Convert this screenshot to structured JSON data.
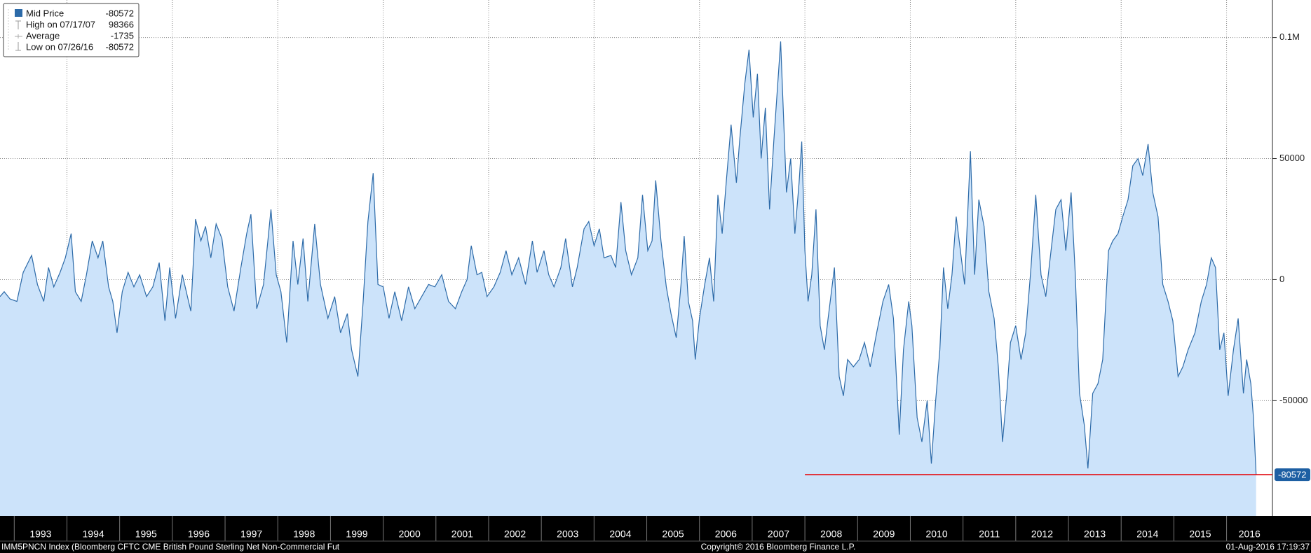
{
  "chart_data": {
    "type": "area",
    "series": [
      {
        "name": "Mid Price",
        "color": "#2c6aa8",
        "fill": "#cce3fa",
        "x": [
          1992.73,
          1992.81,
          1992.92,
          1993.05,
          1993.17,
          1993.33,
          1993.44,
          1993.56,
          1993.65,
          1993.75,
          1993.87,
          1993.97,
          1994.08,
          1994.16,
          1994.27,
          1994.37,
          1994.48,
          1994.59,
          1994.68,
          1994.79,
          1994.87,
          1994.95,
          1995.05,
          1995.16,
          1995.27,
          1995.38,
          1995.51,
          1995.63,
          1995.75,
          1995.86,
          1995.95,
          1996.06,
          1996.19,
          1996.35,
          1996.44,
          1996.54,
          1996.63,
          1996.73,
          1996.83,
          1996.94,
          1997.05,
          1997.17,
          1997.3,
          1997.41,
          1997.49,
          1997.6,
          1997.73,
          1997.87,
          1997.97,
          1998.06,
          1998.17,
          1998.29,
          1998.38,
          1998.48,
          1998.57,
          1998.7,
          1998.81,
          1998.95,
          1999.08,
          1999.19,
          1999.32,
          1999.4,
          1999.52,
          1999.62,
          1999.71,
          1999.81,
          1999.9,
          2000.0,
          2000.11,
          2000.22,
          2000.35,
          2000.48,
          2000.6,
          2000.73,
          2000.86,
          2000.98,
          2001.11,
          2001.24,
          2001.37,
          2001.49,
          2001.59,
          2001.67,
          2001.78,
          2001.87,
          2001.97,
          2002.1,
          2002.22,
          2002.33,
          2002.44,
          2002.57,
          2002.7,
          2002.83,
          2002.92,
          2003.05,
          2003.14,
          2003.24,
          2003.37,
          2003.46,
          2003.59,
          2003.68,
          2003.81,
          2003.9,
          2004.0,
          2004.1,
          2004.19,
          2004.32,
          2004.41,
          2004.51,
          2004.6,
          2004.71,
          2004.83,
          2004.92,
          2005.02,
          2005.1,
          2005.17,
          2005.27,
          2005.37,
          2005.46,
          2005.56,
          2005.65,
          2005.71,
          2005.79,
          2005.87,
          2005.92,
          2006.0,
          2006.1,
          2006.19,
          2006.27,
          2006.35,
          2006.43,
          2006.51,
          2006.6,
          2006.7,
          2006.76,
          2006.86,
          2006.94,
          2007.02,
          2007.1,
          2007.17,
          2007.25,
          2007.33,
          2007.41,
          2007.54,
          2007.57,
          2007.65,
          2007.73,
          2007.81,
          2007.89,
          2007.94,
          2008.0,
          2008.06,
          2008.13,
          2008.21,
          2008.29,
          2008.37,
          2008.44,
          2008.56,
          2008.65,
          2008.73,
          2008.81,
          2008.92,
          2009.03,
          2009.13,
          2009.24,
          2009.37,
          2009.48,
          2009.59,
          2009.68,
          2009.79,
          2009.87,
          2009.97,
          2010.03,
          2010.13,
          2010.22,
          2010.32,
          2010.4,
          2010.48,
          2010.56,
          2010.63,
          2010.71,
          2010.79,
          2010.87,
          2010.95,
          2011.03,
          2011.14,
          2011.22,
          2011.3,
          2011.4,
          2011.49,
          2011.59,
          2011.67,
          2011.75,
          2011.83,
          2011.9,
          2012.0,
          2012.1,
          2012.19,
          2012.29,
          2012.38,
          2012.48,
          2012.57,
          2012.67,
          2012.76,
          2012.86,
          2012.95,
          2013.05,
          2013.13,
          2013.21,
          2013.3,
          2013.37,
          2013.46,
          2013.56,
          2013.65,
          2013.76,
          2013.84,
          2013.94,
          2014.03,
          2014.13,
          2014.22,
          2014.32,
          2014.41,
          2014.51,
          2014.6,
          2014.7,
          2014.79,
          2014.89,
          2014.98,
          2015.08,
          2015.17,
          2015.27,
          2015.4,
          2015.52,
          2015.62,
          2015.71,
          2015.79,
          2015.87,
          2015.95,
          2016.03,
          2016.13,
          2016.22,
          2016.32,
          2016.38,
          2016.46,
          2016.51,
          2016.56
        ],
        "values": [
          -7000,
          -5000,
          -8000,
          -9000,
          3000,
          10000,
          -2000,
          -9000,
          5000,
          -3000,
          3000,
          9000,
          19000,
          -5000,
          -9000,
          2000,
          16000,
          9000,
          16000,
          -3000,
          -9000,
          -22000,
          -5000,
          3000,
          -3000,
          2000,
          -7000,
          -3000,
          7000,
          -17000,
          5000,
          -16000,
          2000,
          -13000,
          25000,
          16000,
          22000,
          9000,
          23000,
          17000,
          -3000,
          -13000,
          5000,
          19000,
          27000,
          -12000,
          -2000,
          29000,
          2000,
          -5000,
          -26000,
          16000,
          -2000,
          17000,
          -9000,
          23000,
          -2000,
          -16000,
          -7000,
          -22000,
          -14000,
          -29000,
          -40000,
          -9000,
          24000,
          44000,
          -2000,
          -3000,
          -16000,
          -5000,
          -17000,
          -3000,
          -12000,
          -7000,
          -2000,
          -3000,
          2000,
          -9000,
          -12000,
          -5000,
          0,
          14000,
          2000,
          3000,
          -7000,
          -3000,
          3000,
          12000,
          2000,
          9000,
          -2000,
          16000,
          3000,
          12000,
          2000,
          -3000,
          5000,
          17000,
          -3000,
          5000,
          21000,
          24000,
          14000,
          21000,
          9000,
          10000,
          5000,
          32000,
          12000,
          2000,
          9000,
          35000,
          12000,
          16000,
          41000,
          16000,
          -3000,
          -14000,
          -24000,
          -2000,
          18000,
          -9000,
          -17000,
          -33000,
          -16000,
          -2000,
          9000,
          -9000,
          35000,
          19000,
          41000,
          64000,
          40000,
          57000,
          81000,
          95000,
          67000,
          85000,
          50000,
          71000,
          29000,
          57000,
          98366,
          81000,
          36000,
          50000,
          19000,
          40000,
          57000,
          12000,
          -9000,
          2000,
          29000,
          -19000,
          -29000,
          -16000,
          5000,
          -40000,
          -48000,
          -33000,
          -36000,
          -33000,
          -26000,
          -36000,
          -21000,
          -9000,
          -2000,
          -16000,
          -64000,
          -29000,
          -9000,
          -19000,
          -57000,
          -67000,
          -50000,
          -76000,
          -50000,
          -29000,
          5000,
          -12000,
          2000,
          26000,
          12000,
          -2000,
          53000,
          2000,
          33000,
          22000,
          -5000,
          -16000,
          -36000,
          -67000,
          -47000,
          -26000,
          -19000,
          -33000,
          -22000,
          5000,
          35000,
          2000,
          -7000,
          12000,
          29000,
          33000,
          12000,
          36000,
          2000,
          -47000,
          -60000,
          -78000,
          -47000,
          -43000,
          -33000,
          12000,
          16000,
          19000,
          26000,
          33000,
          47000,
          50000,
          43000,
          56000,
          36000,
          26000,
          -2000,
          -9000,
          -17000,
          -40000,
          -36000,
          -29000,
          -22000,
          -9000,
          -2000,
          9000,
          5000,
          -29000,
          -22000,
          -48000,
          -29000,
          -16000,
          -47000,
          -33000,
          -43000,
          -57000,
          -80572
        ]
      }
    ],
    "stats": [
      {
        "label": "High on 07/17/07",
        "value": 98366
      },
      {
        "label": "Average",
        "value": -1735
      },
      {
        "label": "Low on 07/26/16",
        "value": -80572
      }
    ],
    "low_line": {
      "x_start": 2008,
      "color": "#e3151a"
    },
    "xlim": [
      1992.73,
      2016.87
    ],
    "xticks": [
      1993,
      1994,
      1995,
      1996,
      1997,
      1998,
      1999,
      2000,
      2001,
      2002,
      2003,
      2004,
      2005,
      2006,
      2007,
      2008,
      2009,
      2010,
      2011,
      2012,
      2013,
      2014,
      2015,
      2016
    ],
    "ylim": [
      -97600,
      115500
    ],
    "yticks": [
      -50000,
      0,
      50000,
      {
        "value": 100000,
        "label": "0.1M"
      }
    ],
    "y_axis_side": "right",
    "grid": true,
    "legend_position": "top-left",
    "footer": {
      "left": "IMM5PNCN Index (Bloomberg CFTC CME British Pound Sterling Net Non-Commercial Fut",
      "center": "Copyright© 2016 Bloomberg Finance L.P.",
      "right": "01-Aug-2016 17:19:37"
    }
  }
}
